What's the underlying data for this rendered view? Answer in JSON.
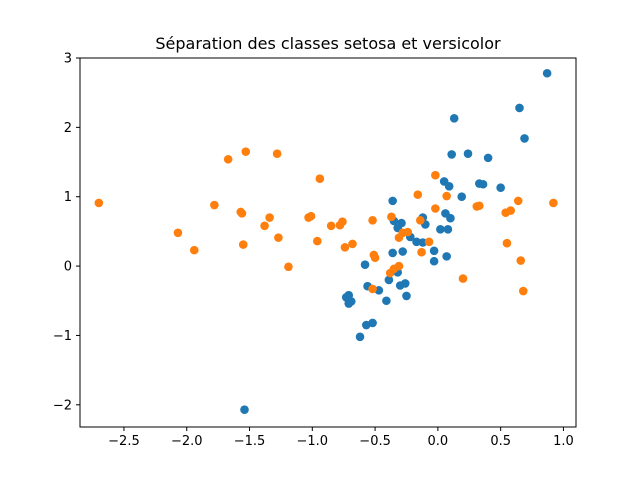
{
  "chart_data": {
    "type": "scatter",
    "title": "Séparation des classes setosa et versicolor",
    "xlabel": "",
    "ylabel": "",
    "xlim": [
      -2.85,
      1.1
    ],
    "ylim": [
      -2.32,
      3.0
    ],
    "xticks": [
      -2.5,
      -2.0,
      -1.5,
      -1.0,
      -0.5,
      0.0,
      0.5,
      1.0
    ],
    "yticks": [
      -2,
      -1,
      0,
      1,
      2,
      3
    ],
    "xtick_labels": [
      "−2.5",
      "−2.0",
      "−1.5",
      "−1.0",
      "−0.5",
      "0.0",
      "0.5",
      "1.0"
    ],
    "ytick_labels": [
      "−2",
      "−1",
      "0",
      "1",
      "2",
      "3"
    ],
    "grid": false,
    "series": [
      {
        "color": "#1f77b4",
        "points": [
          [
            0.87,
            2.78
          ],
          [
            0.65,
            2.28
          ],
          [
            0.69,
            1.84
          ],
          [
            0.13,
            2.13
          ],
          [
            0.24,
            1.62
          ],
          [
            0.11,
            1.61
          ],
          [
            0.4,
            1.56
          ],
          [
            0.33,
            1.19
          ],
          [
            0.36,
            1.18
          ],
          [
            0.5,
            1.13
          ],
          [
            0.05,
            1.22
          ],
          [
            0.09,
            1.15
          ],
          [
            0.19,
            1.0
          ],
          [
            -0.36,
            0.94
          ],
          [
            0.06,
            0.76
          ],
          [
            0.1,
            0.69
          ],
          [
            -0.35,
            0.65
          ],
          [
            -0.29,
            0.62
          ],
          [
            -0.32,
            0.55
          ],
          [
            -0.12,
            0.7
          ],
          [
            -0.1,
            0.6
          ],
          [
            0.02,
            0.53
          ],
          [
            0.08,
            0.53
          ],
          [
            -0.22,
            0.42
          ],
          [
            -0.17,
            0.35
          ],
          [
            -0.12,
            0.34
          ],
          [
            -0.03,
            0.22
          ],
          [
            -0.36,
            0.19
          ],
          [
            -0.28,
            0.21
          ],
          [
            0.07,
            0.14
          ],
          [
            -0.03,
            0.07
          ],
          [
            -0.58,
            0.02
          ],
          [
            -0.32,
            -0.09
          ],
          [
            -0.39,
            -0.2
          ],
          [
            -0.56,
            -0.29
          ],
          [
            -0.3,
            -0.28
          ],
          [
            -0.26,
            -0.25
          ],
          [
            -0.47,
            -0.35
          ],
          [
            -0.71,
            -0.42
          ],
          [
            -0.73,
            -0.45
          ],
          [
            -0.69,
            -0.51
          ],
          [
            -0.71,
            -0.54
          ],
          [
            -0.41,
            -0.5
          ],
          [
            -0.25,
            -0.43
          ],
          [
            -0.52,
            -0.82
          ],
          [
            -0.57,
            -0.85
          ],
          [
            -0.62,
            -1.02
          ],
          [
            -1.54,
            -2.07
          ]
        ]
      },
      {
        "color": "#ff7f0e",
        "points": [
          [
            -2.7,
            0.91
          ],
          [
            -2.07,
            0.48
          ],
          [
            -1.94,
            0.23
          ],
          [
            -1.78,
            0.88
          ],
          [
            -1.67,
            1.54
          ],
          [
            -1.53,
            1.65
          ],
          [
            -1.28,
            1.62
          ],
          [
            -1.57,
            0.78
          ],
          [
            -1.56,
            0.76
          ],
          [
            -1.34,
            0.7
          ],
          [
            -1.38,
            0.58
          ],
          [
            -1.27,
            0.41
          ],
          [
            -1.55,
            0.31
          ],
          [
            -1.19,
            -0.01
          ],
          [
            -0.94,
            1.26
          ],
          [
            -1.01,
            0.72
          ],
          [
            -1.03,
            0.7
          ],
          [
            -0.76,
            0.64
          ],
          [
            -0.78,
            0.59
          ],
          [
            -0.85,
            0.58
          ],
          [
            -0.96,
            0.36
          ],
          [
            -0.68,
            0.32
          ],
          [
            -0.74,
            0.27
          ],
          [
            -0.52,
            0.66
          ],
          [
            -0.37,
            0.71
          ],
          [
            -0.31,
            0.41
          ],
          [
            -0.28,
            0.48
          ],
          [
            -0.24,
            0.49
          ],
          [
            -0.35,
            -0.04
          ],
          [
            -0.38,
            -0.1
          ],
          [
            -0.31,
            0.0
          ],
          [
            -0.51,
            0.16
          ],
          [
            -0.5,
            0.12
          ],
          [
            -0.52,
            -0.33
          ],
          [
            -0.16,
            1.03
          ],
          [
            -0.14,
            0.66
          ],
          [
            -0.07,
            0.35
          ],
          [
            -0.13,
            0.2
          ],
          [
            -0.02,
            0.83
          ],
          [
            -0.02,
            1.31
          ],
          [
            0.07,
            1.01
          ],
          [
            0.31,
            0.86
          ],
          [
            0.33,
            0.87
          ],
          [
            0.54,
            0.77
          ],
          [
            0.58,
            0.8
          ],
          [
            0.64,
            0.94
          ],
          [
            0.92,
            0.91
          ],
          [
            0.55,
            0.33
          ],
          [
            0.66,
            0.08
          ],
          [
            0.68,
            -0.36
          ],
          [
            0.2,
            -0.18
          ]
        ]
      }
    ]
  }
}
